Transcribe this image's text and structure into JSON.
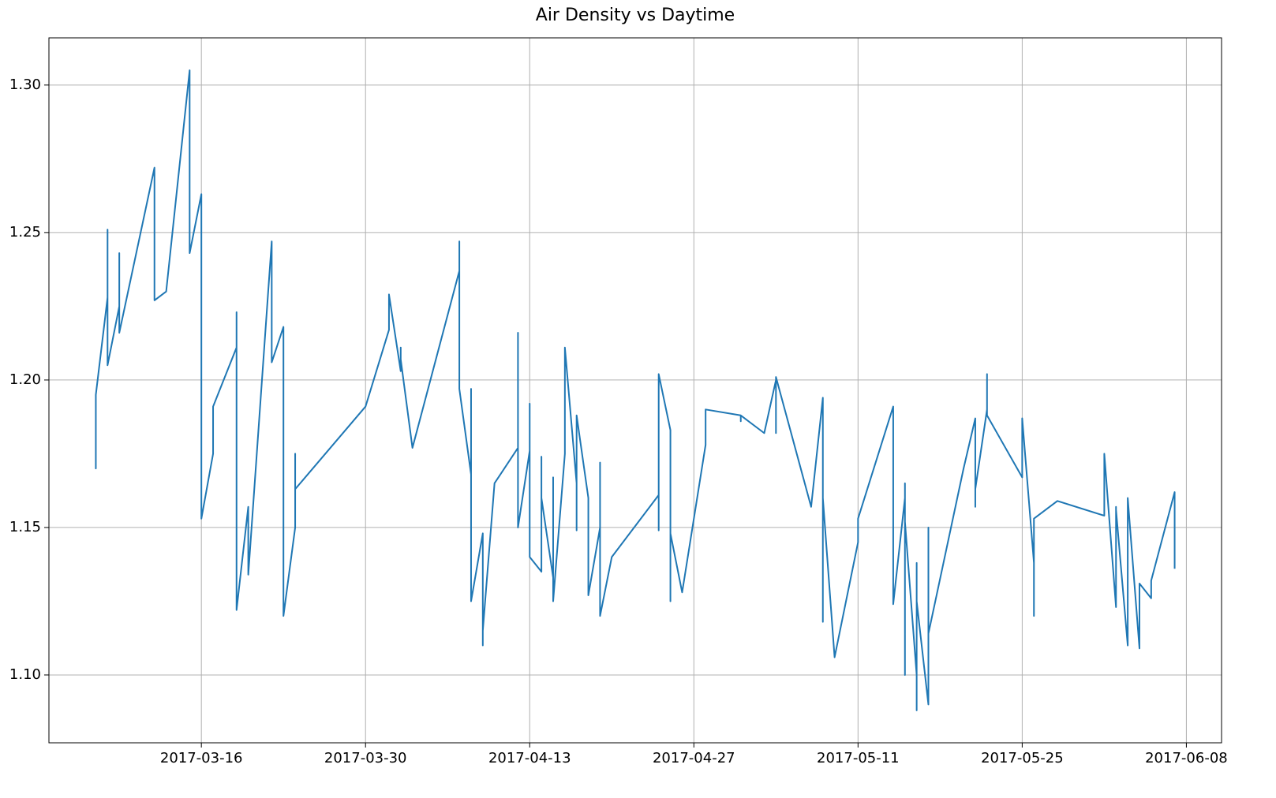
{
  "chart_data": {
    "type": "line",
    "title": "Air Density vs Daytime",
    "color": "#1f77b4",
    "grid": true,
    "x": [
      "2017-03-07",
      "2017-03-07",
      "2017-03-07",
      "2017-03-07",
      "2017-03-08",
      "2017-03-08",
      "2017-03-08",
      "2017-03-09",
      "2017-03-09",
      "2017-03-09",
      "2017-03-12",
      "2017-03-12",
      "2017-03-12",
      "2017-03-13",
      "2017-03-15",
      "2017-03-15",
      "2017-03-15",
      "2017-03-16",
      "2017-03-16",
      "2017-03-16",
      "2017-03-16",
      "2017-03-17",
      "2017-03-17",
      "2017-03-19",
      "2017-03-19",
      "2017-03-19",
      "2017-03-19",
      "2017-03-19",
      "2017-03-20",
      "2017-03-20",
      "2017-03-22",
      "2017-03-22",
      "2017-03-23",
      "2017-03-23",
      "2017-03-23",
      "2017-03-23",
      "2017-03-24",
      "2017-03-24",
      "2017-03-24",
      "2017-03-30",
      "2017-04-01",
      "2017-04-01",
      "2017-04-02",
      "2017-04-02",
      "2017-04-02",
      "2017-04-03",
      "2017-04-07",
      "2017-04-07",
      "2017-04-07",
      "2017-04-08",
      "2017-04-08",
      "2017-04-08",
      "2017-04-08",
      "2017-04-08",
      "2017-04-09",
      "2017-04-09",
      "2017-04-09",
      "2017-04-09",
      "2017-04-09",
      "2017-04-10",
      "2017-04-12",
      "2017-04-12",
      "2017-04-12",
      "2017-04-12",
      "2017-04-12",
      "2017-04-13",
      "2017-04-13",
      "2017-04-13",
      "2017-04-14",
      "2017-04-14",
      "2017-04-14",
      "2017-04-14",
      "2017-04-15",
      "2017-04-15",
      "2017-04-15",
      "2017-04-15",
      "2017-04-16",
      "2017-04-16",
      "2017-04-17",
      "2017-04-17",
      "2017-04-17",
      "2017-04-17",
      "2017-04-18",
      "2017-04-18",
      "2017-04-19",
      "2017-04-19",
      "2017-04-19",
      "2017-04-20",
      "2017-04-24",
      "2017-04-24",
      "2017-04-24",
      "2017-04-24",
      "2017-04-25",
      "2017-04-25",
      "2017-04-25",
      "2017-04-25",
      "2017-04-25",
      "2017-04-26",
      "2017-04-28",
      "2017-04-28",
      "2017-05-01",
      "2017-05-01",
      "2017-05-01",
      "2017-05-03",
      "2017-05-04",
      "2017-05-04",
      "2017-05-04",
      "2017-05-07",
      "2017-05-08",
      "2017-05-08",
      "2017-05-08",
      "2017-05-08",
      "2017-05-08",
      "2017-05-09",
      "2017-05-11",
      "2017-05-11",
      "2017-05-14",
      "2017-05-14",
      "2017-05-14",
      "2017-05-15",
      "2017-05-15",
      "2017-05-15",
      "2017-05-15",
      "2017-05-15",
      "2017-05-15",
      "2017-05-15",
      "2017-05-16",
      "2017-05-16",
      "2017-05-16",
      "2017-05-16",
      "2017-05-16",
      "2017-05-16",
      "2017-05-17",
      "2017-05-17",
      "2017-05-17",
      "2017-05-17",
      "2017-05-20",
      "2017-05-21",
      "2017-05-21",
      "2017-05-21",
      "2017-05-21",
      "2017-05-22",
      "2017-05-22",
      "2017-05-22",
      "2017-05-25",
      "2017-05-25",
      "2017-05-26",
      "2017-05-26",
      "2017-05-26",
      "2017-05-26",
      "2017-05-26",
      "2017-05-28",
      "2017-06-01",
      "2017-06-01",
      "2017-06-01",
      "2017-06-02",
      "2017-06-02",
      "2017-06-02",
      "2017-06-03",
      "2017-06-03",
      "2017-06-03",
      "2017-06-03",
      "2017-06-04",
      "2017-06-04",
      "2017-06-05",
      "2017-06-05",
      "2017-06-07",
      "2017-06-07"
    ],
    "values": [
      1.172,
      1.19,
      1.17,
      1.195,
      1.228,
      1.251,
      1.205,
      1.225,
      1.243,
      1.216,
      1.272,
      1.242,
      1.227,
      1.23,
      1.305,
      1.26,
      1.243,
      1.263,
      1.248,
      1.155,
      1.153,
      1.175,
      1.191,
      1.211,
      1.223,
      1.21,
      1.16,
      1.122,
      1.157,
      1.134,
      1.247,
      1.206,
      1.218,
      1.198,
      1.131,
      1.12,
      1.15,
      1.175,
      1.163,
      1.191,
      1.217,
      1.229,
      1.203,
      1.211,
      1.207,
      1.177,
      1.237,
      1.247,
      1.197,
      1.168,
      1.197,
      1.187,
      1.128,
      1.125,
      1.148,
      1.143,
      1.148,
      1.11,
      1.115,
      1.165,
      1.177,
      1.213,
      1.216,
      1.174,
      1.15,
      1.176,
      1.192,
      1.14,
      1.135,
      1.165,
      1.174,
      1.16,
      1.133,
      1.167,
      1.158,
      1.125,
      1.175,
      1.211,
      1.165,
      1.149,
      1.178,
      1.188,
      1.16,
      1.127,
      1.15,
      1.172,
      1.12,
      1.14,
      1.161,
      1.149,
      1.182,
      1.202,
      1.183,
      1.13,
      1.125,
      1.162,
      1.148,
      1.128,
      1.178,
      1.19,
      1.188,
      1.186,
      1.188,
      1.182,
      1.2,
      1.182,
      1.201,
      1.157,
      1.194,
      1.14,
      1.118,
      1.148,
      1.16,
      1.106,
      1.145,
      1.153,
      1.191,
      1.14,
      1.124,
      1.16,
      1.165,
      1.124,
      1.1,
      1.1,
      1.14,
      1.152,
      1.1,
      1.088,
      1.1,
      1.133,
      1.138,
      1.125,
      1.09,
      1.15,
      1.14,
      1.114,
      1.17,
      1.187,
      1.178,
      1.157,
      1.163,
      1.19,
      1.202,
      1.188,
      1.167,
      1.187,
      1.138,
      1.12,
      1.148,
      1.147,
      1.153,
      1.159,
      1.154,
      1.162,
      1.175,
      1.123,
      1.157,
      1.156,
      1.11,
      1.112,
      1.157,
      1.16,
      1.109,
      1.131,
      1.126,
      1.132,
      1.162,
      1.136
    ],
    "xlim": [
      "2017-03-03",
      "2017-06-11"
    ],
    "xticks": [
      "2017-03-16",
      "2017-03-30",
      "2017-04-13",
      "2017-04-27",
      "2017-05-11",
      "2017-05-25",
      "2017-06-08"
    ],
    "ylim": [
      1.077,
      1.316
    ],
    "yticks": [
      {
        "value": 1.1,
        "label": "1.10"
      },
      {
        "value": 1.15,
        "label": "1.15"
      },
      {
        "value": 1.2,
        "label": "1.20"
      },
      {
        "value": 1.25,
        "label": "1.25"
      },
      {
        "value": 1.3,
        "label": "1.30"
      }
    ]
  }
}
